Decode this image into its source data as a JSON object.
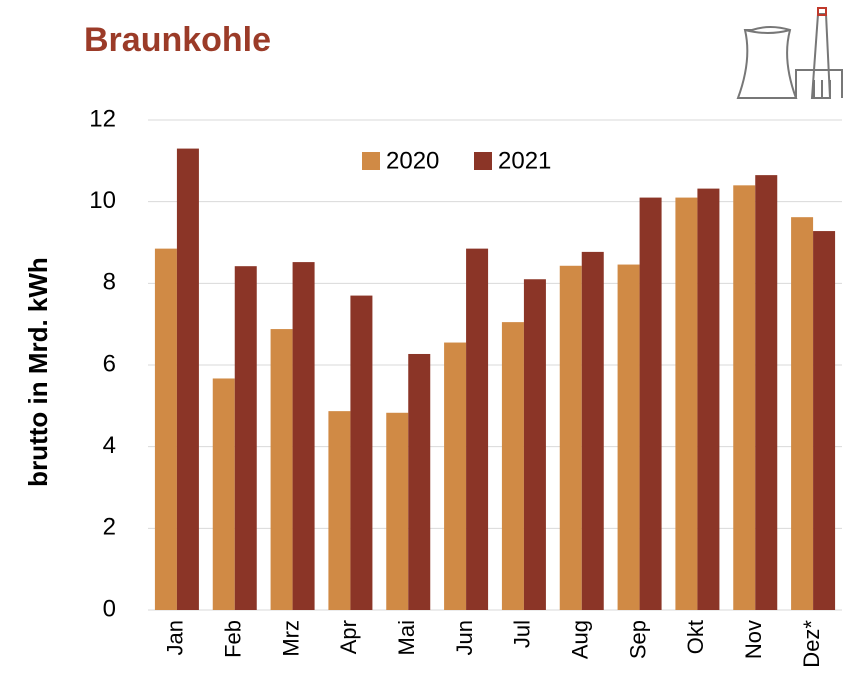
{
  "chart_data": {
    "type": "bar",
    "title": "Braunkohle",
    "y_label": "brutto in  Mrd. kWh",
    "categories": [
      "Jan",
      "Feb",
      "Mrz",
      "Apr",
      "Mai",
      "Jun",
      "Jul",
      "Aug",
      "Sep",
      "Okt",
      "Nov",
      "Dez*"
    ],
    "series": [
      {
        "name": "2020",
        "color": "#d08a45",
        "values": [
          8.85,
          5.67,
          6.88,
          4.87,
          4.83,
          6.55,
          7.05,
          8.43,
          8.46,
          10.1,
          10.4,
          9.62
        ]
      },
      {
        "name": "2021",
        "color": "#8b3527",
        "values": [
          11.3,
          8.42,
          8.52,
          7.7,
          6.27,
          8.85,
          8.1,
          8.77,
          10.1,
          10.32,
          10.65,
          9.28
        ]
      }
    ],
    "ylim": [
      0,
      12
    ],
    "yticks": [
      0,
      2,
      4,
      6,
      8,
      10,
      12
    ],
    "grid": true,
    "legend": "top"
  }
}
